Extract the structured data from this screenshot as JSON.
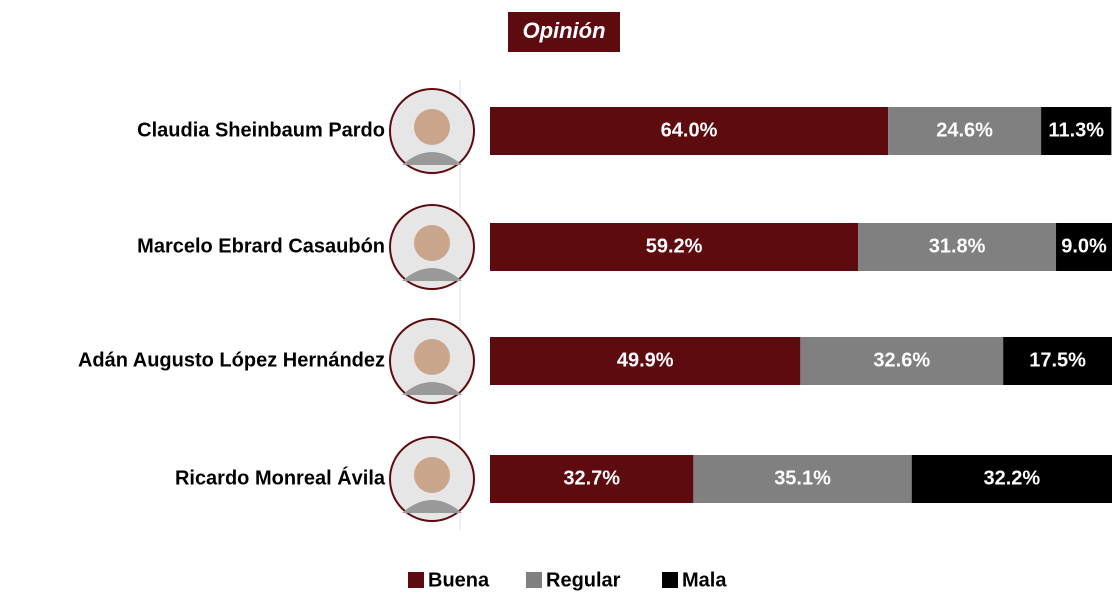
{
  "chart_data": {
    "type": "stacked-bar-horizontal",
    "title": "Opinión",
    "categories": [
      "Claudia Sheinbaum Pardo",
      "Marcelo Ebrard Casaubón",
      "Adán Augusto López Hernández",
      "Ricardo Monreal Ávila"
    ],
    "series": [
      {
        "name": "Buena",
        "color": "#5e0b0f",
        "values": [
          64.0,
          59.2,
          49.9,
          32.7
        ],
        "value_labels": [
          "64.0%",
          "59.2%",
          "49.9%",
          "32.7%"
        ]
      },
      {
        "name": "Regular",
        "color": "#808080",
        "values": [
          24.6,
          31.8,
          32.6,
          35.1
        ],
        "value_labels": [
          "24.6%",
          "31.8%",
          "32.6%",
          "35.1%"
        ]
      },
      {
        "name": "Mala",
        "color": "#000000",
        "values": [
          11.3,
          9.0,
          17.5,
          32.2
        ],
        "value_labels": [
          "11.3%",
          "9.0%",
          "17.5%",
          "32.2%"
        ]
      }
    ],
    "xlim": [
      0,
      100
    ],
    "legend": "bottom"
  }
}
